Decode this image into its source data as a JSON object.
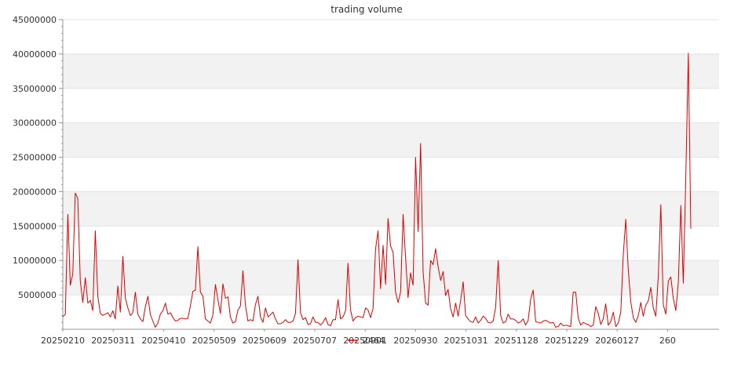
{
  "chart_data": {
    "type": "line",
    "title": "trading volume",
    "xlabel": "",
    "ylabel": "",
    "ylim": [
      0,
      45000000
    ],
    "yticks": [
      5000000,
      10000000,
      15000000,
      20000000,
      25000000,
      30000000,
      35000000,
      40000000,
      45000000
    ],
    "ytick_labels": [
      "5000000",
      "10000000",
      "15000000",
      "20000000",
      "25000000",
      "30000000",
      "35000000",
      "40000000",
      "45000000"
    ],
    "x_tick_labels": [
      "20250210",
      "20250311",
      "20250410",
      "20250509",
      "20250609",
      "20250707",
      "20250901",
      "20250930",
      "20251031",
      "20251128",
      "20251229",
      "20260127",
      "260"
    ],
    "grid": "horizontal alternating bands",
    "legend": {
      "position": "bottom-center",
      "entries": [
        {
          "name": "2464",
          "color": "#dd0000"
        }
      ]
    },
    "series": [
      {
        "name": "2464",
        "color": "#dd0000",
        "values": [
          1800000,
          2200000,
          16700000,
          6400000,
          8000000,
          19800000,
          19000000,
          7000000,
          3900000,
          7500000,
          3800000,
          4200000,
          2700000,
          14300000,
          4800000,
          2300000,
          2000000,
          2200000,
          2400000,
          1800000,
          2700000,
          1500000,
          6300000,
          2500000,
          10600000,
          4500000,
          3100000,
          2000000,
          2400000,
          5400000,
          2200000,
          1500000,
          1100000,
          3300000,
          4800000,
          2100000,
          1200000,
          300000,
          900000,
          2200000,
          2700000,
          3800000,
          2200000,
          2400000,
          1700000,
          1200000,
          1300000,
          1600000,
          1600000,
          1500000,
          1600000,
          3400000,
          5500000,
          5700000,
          12000000,
          5400000,
          4800000,
          1500000,
          1200000,
          900000,
          2100000,
          6500000,
          4300000,
          2300000,
          6600000,
          4500000,
          4700000,
          1800000,
          900000,
          1100000,
          2800000,
          3400000,
          8500000,
          3400000,
          1200000,
          1400000,
          1200000,
          3600000,
          4800000,
          1800000,
          1000000,
          3100000,
          1800000,
          2100000,
          2500000,
          1500000,
          800000,
          800000,
          1000000,
          1400000,
          1000000,
          1000000,
          1200000,
          2300000,
          10100000,
          2400000,
          1400000,
          1700000,
          700000,
          800000,
          1800000,
          1000000,
          1000000,
          600000,
          1000000,
          1700000,
          700000,
          500000,
          1400000,
          1400000,
          4300000,
          1500000,
          1800000,
          2700000,
          9600000,
          2800000,
          1200000,
          1700000,
          1900000,
          1800000,
          1700000,
          3100000,
          2800000,
          1700000,
          3000000,
          11700000,
          14300000,
          5900000,
          12200000,
          6500000,
          16100000,
          12100000,
          11200000,
          5400000,
          3900000,
          5400000,
          16700000,
          10300000,
          4600000,
          8200000,
          6400000,
          25000000,
          14200000,
          27000000,
          8300000,
          3800000,
          3500000,
          10000000,
          9400000,
          11700000,
          9100000,
          7100000,
          8400000,
          4900000,
          5800000,
          3000000,
          1800000,
          3800000,
          1900000,
          4200000,
          6900000,
          2000000,
          1500000,
          1100000,
          1000000,
          1800000,
          900000,
          1300000,
          1900000,
          1600000,
          1000000,
          900000,
          1200000,
          3200000,
          10000000,
          2000000,
          900000,
          1100000,
          2200000,
          1500000,
          1500000,
          1300000,
          900000,
          1100000,
          1500000,
          600000,
          1300000,
          4400000,
          5700000,
          1100000,
          1000000,
          900000,
          1200000,
          1300000,
          1100000,
          900000,
          1000000,
          300000,
          400000,
          900000,
          500000,
          600000,
          500000,
          400000,
          5400000,
          5400000,
          1600000,
          600000,
          1000000,
          800000,
          700000,
          400000,
          600000,
          3300000,
          2300000,
          700000,
          1500000,
          3700000,
          600000,
          1100000,
          2500000,
          400000,
          900000,
          2500000,
          10700000,
          16000000,
          8700000,
          4000000,
          1700000,
          1000000,
          2000000,
          3900000,
          1900000,
          3500000,
          4100000,
          6100000,
          3100000,
          1900000,
          7800000,
          18100000,
          3600000,
          2200000,
          7000000,
          7600000,
          4500000,
          2700000,
          6800000,
          18000000,
          6700000,
          22000000,
          40100000,
          14600000
        ]
      }
    ]
  }
}
